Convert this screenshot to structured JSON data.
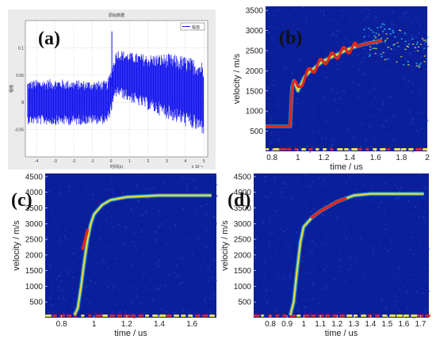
{
  "colors": {
    "noise_bg": "#0b1f9a",
    "noise_speckle": "#1d3fd2",
    "signal_blue": "#1515ee",
    "heat_red": "#e0261c",
    "heat_yellow": "#f2e432",
    "heat_cyan": "#2fd0f0",
    "panel_a_bg": "#ebebeb"
  },
  "chart_data": [
    {
      "id": "a",
      "type": "line",
      "panel_label": "(a)",
      "title": "原始数据",
      "xlabel": "时间(s)",
      "ylabel": "幅值",
      "legend": "幅值",
      "legend_position": "top-right",
      "x_multiplier": "x 10⁻⁶",
      "xlim": [
        -4.6,
        5.2
      ],
      "ylim": [
        -0.1,
        0.15
      ],
      "xticks": [
        -4,
        -3,
        -2,
        -1,
        0,
        1,
        2,
        3,
        4,
        5
      ],
      "yticks": [
        -0.05,
        0,
        0.05,
        0.1
      ],
      "grid": true,
      "series": [
        {
          "x": [
            -4.5,
            -4,
            -3,
            -2,
            -1,
            -0.2,
            0,
            0.3,
            1,
            2,
            3,
            4,
            5
          ],
          "y_upper": [
            0.04,
            0.042,
            0.043,
            0.041,
            0.04,
            0.04,
            0.06,
            0.098,
            0.092,
            0.088,
            0.09,
            0.085,
            0.075
          ],
          "y_lower": [
            -0.04,
            -0.041,
            -0.042,
            -0.042,
            -0.04,
            -0.04,
            -0.02,
            0.012,
            0.0,
            -0.015,
            -0.03,
            -0.045,
            -0.06
          ],
          "y_center": [
            0.0,
            0.0,
            0.0,
            0.0,
            0.0,
            0.0,
            0.02,
            0.055,
            0.048,
            0.037,
            0.03,
            0.02,
            0.008
          ]
        }
      ]
    },
    {
      "id": "b",
      "type": "heatmap",
      "panel_label": "(b)",
      "xlabel": "time / us",
      "ylabel": "velocity / m/s",
      "xlim": [
        0.75,
        2.0
      ],
      "ylim": [
        0,
        3600
      ],
      "xticks": [
        0.8,
        1,
        1.2,
        1.4,
        1.6,
        1.8,
        2
      ],
      "yticks": [
        500,
        1000,
        1500,
        2000,
        2500,
        3000,
        3500
      ],
      "ridge": {
        "x": [
          0.75,
          0.94,
          0.955,
          0.97,
          1.0,
          1.05,
          1.1,
          1.2,
          1.3,
          1.4,
          1.5,
          1.6,
          1.65
        ],
        "y": [
          620,
          620,
          1600,
          1750,
          1500,
          1850,
          2000,
          2250,
          2400,
          2550,
          2650,
          2720,
          2750
        ]
      },
      "cloud": {
        "x": [
          1.55,
          1.6,
          1.7,
          1.8,
          1.9,
          2.0
        ],
        "y": [
          2750,
          2800,
          2700,
          2600,
          2550,
          2500
        ]
      }
    },
    {
      "id": "c",
      "type": "heatmap",
      "panel_label": "(c)",
      "xlabel": "time / us",
      "ylabel": "velocity / m/s",
      "xlim": [
        0.7,
        1.75
      ],
      "ylim": [
        0,
        4600
      ],
      "xticks": [
        0.8,
        1,
        1.2,
        1.4,
        1.6
      ],
      "yticks": [
        500,
        1000,
        1500,
        2000,
        2500,
        3000,
        3500,
        4000,
        4500
      ],
      "ridge": {
        "x": [
          0.88,
          0.9,
          0.92,
          0.94,
          0.96,
          0.98,
          1.0,
          1.05,
          1.1,
          1.2,
          1.4,
          1.6,
          1.72
        ],
        "y": [
          80,
          300,
          1000,
          1800,
          2500,
          3000,
          3300,
          3600,
          3750,
          3850,
          3900,
          3900,
          3900
        ]
      },
      "hot": {
        "x": [
          0.93,
          0.96
        ],
        "y": [
          2200,
          2800
        ]
      }
    },
    {
      "id": "d",
      "type": "heatmap",
      "panel_label": "(d)",
      "xlabel": "time / us",
      "ylabel": "velocity / m/s",
      "xlim": [
        0.7,
        1.75
      ],
      "ylim": [
        0,
        4600
      ],
      "xticks": [
        0.8,
        0.9,
        1,
        1.1,
        1.2,
        1.3,
        1.4,
        1.5,
        1.6,
        1.7
      ],
      "yticks": [
        500,
        1000,
        1500,
        2000,
        2500,
        3000,
        3500,
        4000,
        4500
      ],
      "ridge": {
        "x": [
          0.92,
          0.94,
          0.96,
          0.98,
          1.0,
          1.05,
          1.1,
          1.2,
          1.3,
          1.4,
          1.5,
          1.6,
          1.72
        ],
        "y": [
          80,
          500,
          1500,
          2400,
          2900,
          3200,
          3400,
          3700,
          3900,
          3950,
          3950,
          3950,
          3950
        ]
      },
      "hot": {
        "x": [
          1.05,
          1.25
        ],
        "y": [
          3200,
          3750
        ]
      }
    }
  ]
}
